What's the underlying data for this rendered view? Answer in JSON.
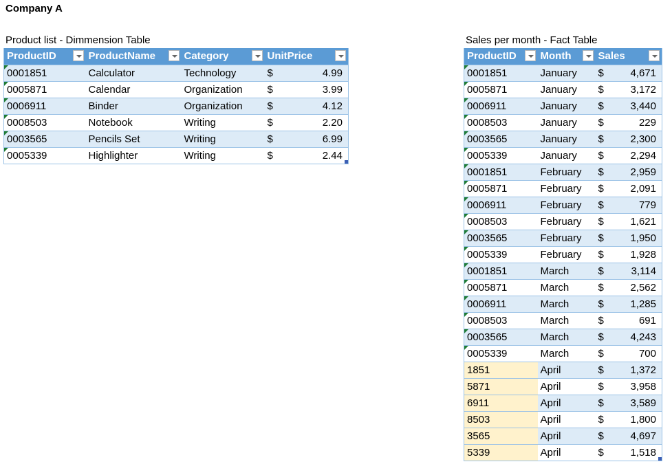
{
  "title": "Company A",
  "product_table": {
    "caption": "Product list - Dimmension Table",
    "headers": [
      "ProductID",
      "ProductName",
      "Category",
      "UnitPrice"
    ],
    "rows": [
      [
        "0001851",
        "Calculator",
        "Technology",
        "$",
        "4.99"
      ],
      [
        "0005871",
        "Calendar",
        "Organization",
        "$",
        "3.99"
      ],
      [
        "0006911",
        "Binder",
        "Organization",
        "$",
        "4.12"
      ],
      [
        "0008503",
        "Notebook",
        "Writing",
        "$",
        "2.20"
      ],
      [
        "0003565",
        "Pencils Set",
        "Writing",
        "$",
        "6.99"
      ],
      [
        "0005339",
        "Highlighter",
        "Writing",
        "$",
        "2.44"
      ]
    ]
  },
  "sales_table": {
    "caption": "Sales per month - Fact Table",
    "headers": [
      "ProductID",
      "Month",
      "Sales"
    ],
    "rows": [
      [
        "0001851",
        "January",
        "$",
        "4,671"
      ],
      [
        "0005871",
        "January",
        "$",
        "3,172"
      ],
      [
        "0006911",
        "January",
        "$",
        "3,440"
      ],
      [
        "0008503",
        "January",
        "$",
        "229"
      ],
      [
        "0003565",
        "January",
        "$",
        "2,300"
      ],
      [
        "0005339",
        "January",
        "$",
        "2,294"
      ],
      [
        "0001851",
        "February",
        "$",
        "2,959"
      ],
      [
        "0005871",
        "February",
        "$",
        "2,091"
      ],
      [
        "0006911",
        "February",
        "$",
        "779"
      ],
      [
        "0008503",
        "February",
        "$",
        "1,621"
      ],
      [
        "0003565",
        "February",
        "$",
        "1,950"
      ],
      [
        "0005339",
        "February",
        "$",
        "1,928"
      ],
      [
        "0001851",
        "March",
        "$",
        "3,114"
      ],
      [
        "0005871",
        "March",
        "$",
        "2,562"
      ],
      [
        "0006911",
        "March",
        "$",
        "1,285"
      ],
      [
        "0008503",
        "March",
        "$",
        "691"
      ],
      [
        "0003565",
        "March",
        "$",
        "4,243"
      ],
      [
        "0005339",
        "March",
        "$",
        "700"
      ],
      [
        "1851",
        "April",
        "$",
        "1,372"
      ],
      [
        "5871",
        "April",
        "$",
        "3,958"
      ],
      [
        "6911",
        "April",
        "$",
        "3,589"
      ],
      [
        "8503",
        "April",
        "$",
        "1,800"
      ],
      [
        "3565",
        "April",
        "$",
        "4,697"
      ],
      [
        "5339",
        "April",
        "$",
        "1,518"
      ]
    ]
  },
  "colors": {
    "header": "#5b9bd5",
    "stripe": "#ddebf7",
    "highlight": "#fff2cc",
    "error_indicator": "#1e7b34"
  }
}
